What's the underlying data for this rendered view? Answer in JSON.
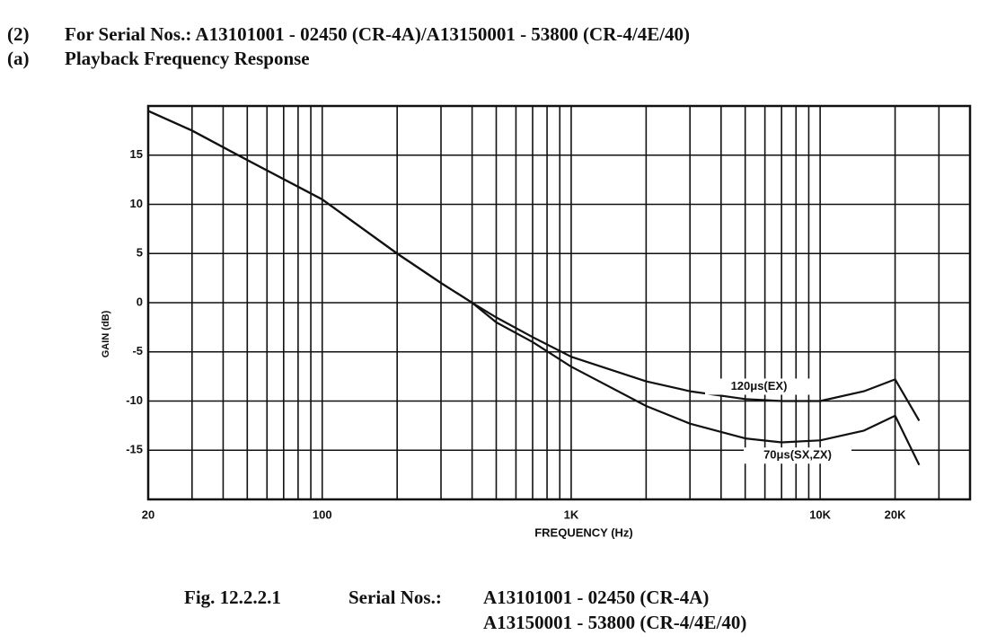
{
  "header": {
    "number": "(2)",
    "title": "For Serial Nos.: A13101001 - 02450 (CR-4A)/A13150001 - 53800 (CR-4/4E/40)",
    "sub_number": "(a)",
    "subtitle": "Playback Frequency Response"
  },
  "chart_data": {
    "type": "line",
    "x_label": "FREQUENCY (Hz)",
    "y_label": "GAIN (dB)",
    "x_scale": "log",
    "grid": true,
    "color": "#111111",
    "xlim": [
      20,
      40000
    ],
    "ylim": [
      -20,
      20
    ],
    "xticks": [
      20,
      100,
      {
        "value": 1000,
        "label": "1K"
      },
      {
        "value": 10000,
        "label": "10K"
      },
      {
        "value": 20000,
        "label": "20K"
      }
    ],
    "xminorticks": [
      30,
      40,
      50,
      60,
      70,
      80,
      90,
      200,
      300,
      400,
      500,
      600,
      700,
      800,
      900,
      2000,
      3000,
      4000,
      5000,
      6000,
      7000,
      8000,
      9000,
      30000
    ],
    "yticks": [
      -15,
      -10,
      -5,
      0,
      5,
      10,
      15
    ],
    "x": [
      20,
      30,
      50,
      100,
      200,
      300,
      400,
      500,
      700,
      1000,
      2000,
      3000,
      5000,
      7000,
      10000,
      15000,
      20000,
      25000
    ],
    "series": [
      {
        "name": "120μs(EX)",
        "color": "#111111",
        "values": [
          19.5,
          17.5,
          14.5,
          10.5,
          5,
          2,
          0,
          -1.5,
          -3.5,
          -5.5,
          -8,
          -9,
          -9.8,
          -10,
          -10,
          -9,
          -7.8,
          -12
        ]
      },
      {
        "name": "70μs(SX,ZX)",
        "color": "#111111",
        "values": [
          19.5,
          17.5,
          14.5,
          10.5,
          5,
          2,
          0,
          -2,
          -4,
          -6.5,
          -10.5,
          -12.3,
          -13.8,
          -14.2,
          -14,
          -13,
          -11.5,
          -16.5
        ]
      }
    ]
  },
  "caption": {
    "figure": "Fig. 12.2.2.1",
    "label": "Serial Nos.:",
    "line1": "A13101001 - 02450 (CR-4A)",
    "line2": "A13150001 - 53800 (CR-4/4E/40)"
  }
}
